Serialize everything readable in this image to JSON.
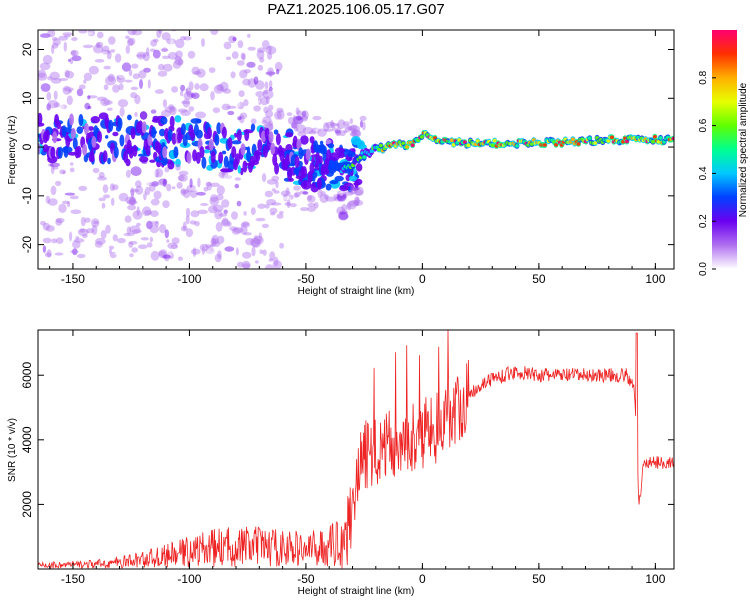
{
  "title": "PAZ1.2025.106.05.17.G07",
  "chart_data": [
    {
      "type": "heatmap",
      "title": "PAZ1.2025.106.05.17.G07",
      "xlabel": "Height of straight line (km)",
      "ylabel": "Frequency (Hz)",
      "xlim": [
        -165,
        108
      ],
      "ylim": [
        -25,
        24
      ],
      "xticks": [
        -150,
        -100,
        -50,
        0,
        50,
        100
      ],
      "yticks": [
        -20,
        -10,
        0,
        10,
        20
      ],
      "colorbar": {
        "label": "Normalized spectral amplitude",
        "range": [
          0,
          1
        ],
        "ticks": [
          "0.0",
          "0.2",
          "0.4",
          "0.6",
          "0.8"
        ],
        "colors": [
          "#ffffff",
          "#b070f0",
          "#6a00f0",
          "#0040ff",
          "#00c8ff",
          "#00ff90",
          "#60ff00",
          "#e8ff00",
          "#ffb000",
          "#ff3000",
          "#ff0070"
        ]
      },
      "ridge": {
        "x": [
          -165,
          -140,
          -120,
          -100,
          -80,
          -60,
          -50,
          -40,
          -35,
          -30,
          -25,
          -20,
          -15,
          -10,
          -5,
          0,
          5,
          10,
          20,
          40,
          60,
          80,
          90,
          108
        ],
        "y": [
          2,
          1.5,
          1.5,
          1,
          0,
          -1.5,
          -3,
          -4,
          -4.5,
          -3.5,
          -1.5,
          -0.5,
          0,
          0.5,
          0.5,
          2.5,
          2,
          1,
          0.8,
          0.8,
          1,
          1.5,
          1.5,
          1.5
        ]
      }
    },
    {
      "type": "line",
      "xlabel": "Height of straight line (km)",
      "ylabel": "SNR (10 * v/v)",
      "xlim": [
        -165,
        108
      ],
      "ylim": [
        0,
        7400
      ],
      "xticks": [
        -150,
        -100,
        -50,
        0,
        50,
        100
      ],
      "yticks": [
        2000,
        4000,
        6000
      ],
      "color": "#ee2222",
      "series": [
        {
          "x": [
            -165,
            -150,
            -140,
            -130,
            -120,
            -110,
            -100,
            -90,
            -80,
            -70,
            -60,
            -50,
            -40,
            -35,
            -32,
            -30,
            -28,
            -25,
            -20,
            -15,
            -10,
            -5,
            0,
            5,
            10,
            15,
            20,
            25,
            30,
            35,
            40,
            45,
            50,
            60,
            70,
            80,
            88,
            91,
            92,
            93,
            95,
            100,
            108
          ],
          "y": [
            120,
            130,
            150,
            200,
            300,
            400,
            550,
            650,
            700,
            700,
            650,
            600,
            700,
            900,
            1200,
            2000,
            3000,
            3500,
            3700,
            3800,
            4000,
            4100,
            4200,
            4300,
            4600,
            5000,
            5400,
            5700,
            5900,
            6000,
            6100,
            6050,
            6000,
            6000,
            6000,
            6000,
            6000,
            5500,
            3800,
            1900,
            3300,
            3300,
            3300
          ]
        }
      ]
    }
  ]
}
